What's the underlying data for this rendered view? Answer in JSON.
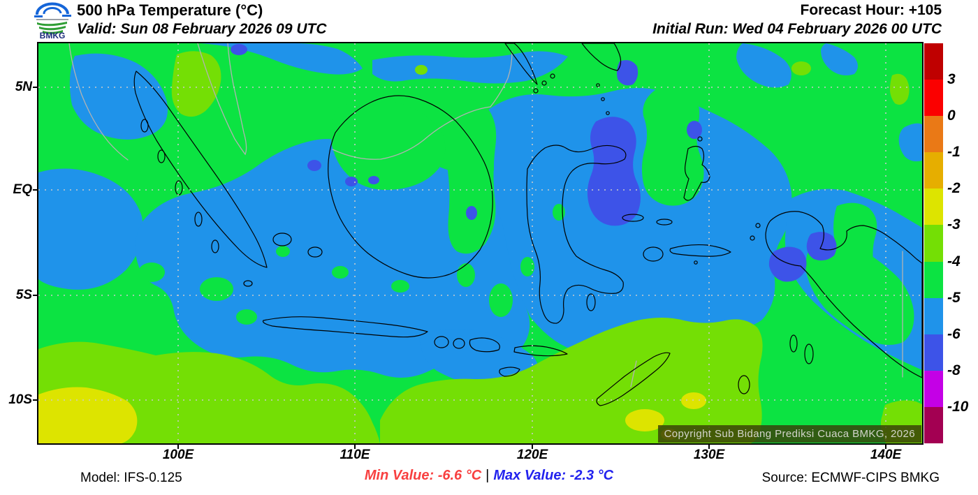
{
  "header": {
    "logo_text": "BMKG",
    "title": "500 hPa Temperature (°C)",
    "valid": "Valid: Sun 08 February 2026 09 UTC",
    "forecast_hour": "Forecast Hour: +105",
    "initial_run": "Initial Run: Wed 04 February 2026 00 UTC"
  },
  "map": {
    "copyright": "Copyright Sub Bidang Prediksi Cuaca BMKG, 2026"
  },
  "axes": {
    "x_ticks": [
      "100E",
      "110E",
      "120E",
      "130E",
      "140E"
    ],
    "y_ticks": [
      "5N",
      "EQ",
      "5S",
      "10S"
    ]
  },
  "colorbar": {
    "segments": [
      "#bf0000",
      "#fb0000",
      "#ea7916",
      "#e6ae00",
      "#dde400",
      "#74df05",
      "#0ce342",
      "#1f93ea",
      "#3d53e8",
      "#c400e6",
      "#a30052"
    ],
    "labels": [
      "3",
      "0",
      "-1",
      "-2",
      "-3",
      "-4",
      "-5",
      "-6",
      "-8",
      "-10"
    ]
  },
  "footer": {
    "model": "Model: IFS-0.125",
    "min_value": "Min Value: -6.6 °C",
    "separator": "|",
    "max_value": "Max Value: -2.3 °C",
    "source": "Source: ECMWF-CIPS BMKG",
    "min_color": "#f84040",
    "max_color": "#2222ee"
  },
  "chart_data": {
    "type": "heatmap",
    "title": "500 hPa Temperature (°C)",
    "x_ticks": [
      "100E",
      "110E",
      "120E",
      "130E",
      "140E"
    ],
    "y_ticks": [
      "5N",
      "EQ",
      "5S",
      "10S"
    ],
    "legend_levels": [
      "3",
      "0",
      "-1",
      "-2",
      "-3",
      "-4",
      "-5",
      "-6",
      "-8",
      "-10"
    ],
    "legend_colors": [
      "#bf0000",
      "#fb0000",
      "#ea7916",
      "#e6ae00",
      "#dde400",
      "#74df05",
      "#0ce342",
      "#1f93ea",
      "#3d53e8",
      "#c400e6",
      "#a30052"
    ],
    "min_value_c": -6.6,
    "max_value_c": -2.3,
    "legend_position": "right",
    "grid": "dotted"
  }
}
